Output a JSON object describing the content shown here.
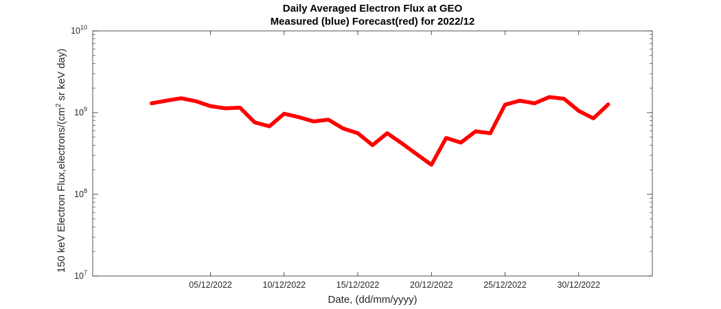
{
  "chart_data": {
    "type": "scatter",
    "title": "Daily Averaged Electron Flux at GEO",
    "subtitle": "Measured (blue) Forecast(red) for 2022/12",
    "xlabel": "Date, (dd/mm/yyyy)",
    "ylabel": {
      "prefix": "150 keV Electron Flux,electrons/(cm",
      "sup": "2",
      "suffix": " sr keV day)"
    },
    "y_scale": "log",
    "ylim": [
      10000000,
      10000000000
    ],
    "xlim": [
      "2022-11-27",
      "2023-01-04"
    ],
    "x_ticks": [
      "05/12/2022",
      "10/12/2022",
      "15/12/2022",
      "20/12/2022",
      "25/12/2022",
      "30/12/2022"
    ],
    "y_ticks": [
      {
        "base": "10",
        "exp": "7"
      },
      {
        "base": "10",
        "exp": "8"
      },
      {
        "base": "10",
        "exp": "9"
      },
      {
        "base": "10",
        "exp": "10"
      }
    ],
    "grid": false,
    "series": [
      {
        "color": "#ff0000",
        "x": [
          "2022-12-01",
          "2022-12-02",
          "2022-12-03",
          "2022-12-04",
          "2022-12-05",
          "2022-12-06",
          "2022-12-07",
          "2022-12-08",
          "2022-12-09",
          "2022-12-10",
          "2022-12-11",
          "2022-12-12",
          "2022-12-13",
          "2022-12-14",
          "2022-12-15",
          "2022-12-16",
          "2022-12-17",
          "2022-12-18",
          "2022-12-19",
          "2022-12-20",
          "2022-12-21",
          "2022-12-22",
          "2022-12-23",
          "2022-12-24",
          "2022-12-25",
          "2022-12-26",
          "2022-12-27",
          "2022-12-28",
          "2022-12-29",
          "2022-12-30",
          "2022-12-31",
          "2023-01-01"
        ],
        "values": [
          1300000000,
          1400000000,
          1500000000,
          1380000000,
          1200000000,
          1130000000,
          1150000000,
          760000000,
          680000000,
          970000000,
          880000000,
          780000000,
          820000000,
          640000000,
          560000000,
          400000000,
          560000000,
          420000000,
          310000000,
          230000000,
          490000000,
          430000000,
          590000000,
          560000000,
          1250000000,
          1400000000,
          1300000000,
          1550000000,
          1480000000,
          1050000000,
          850000000,
          1260000000
        ]
      }
    ]
  }
}
